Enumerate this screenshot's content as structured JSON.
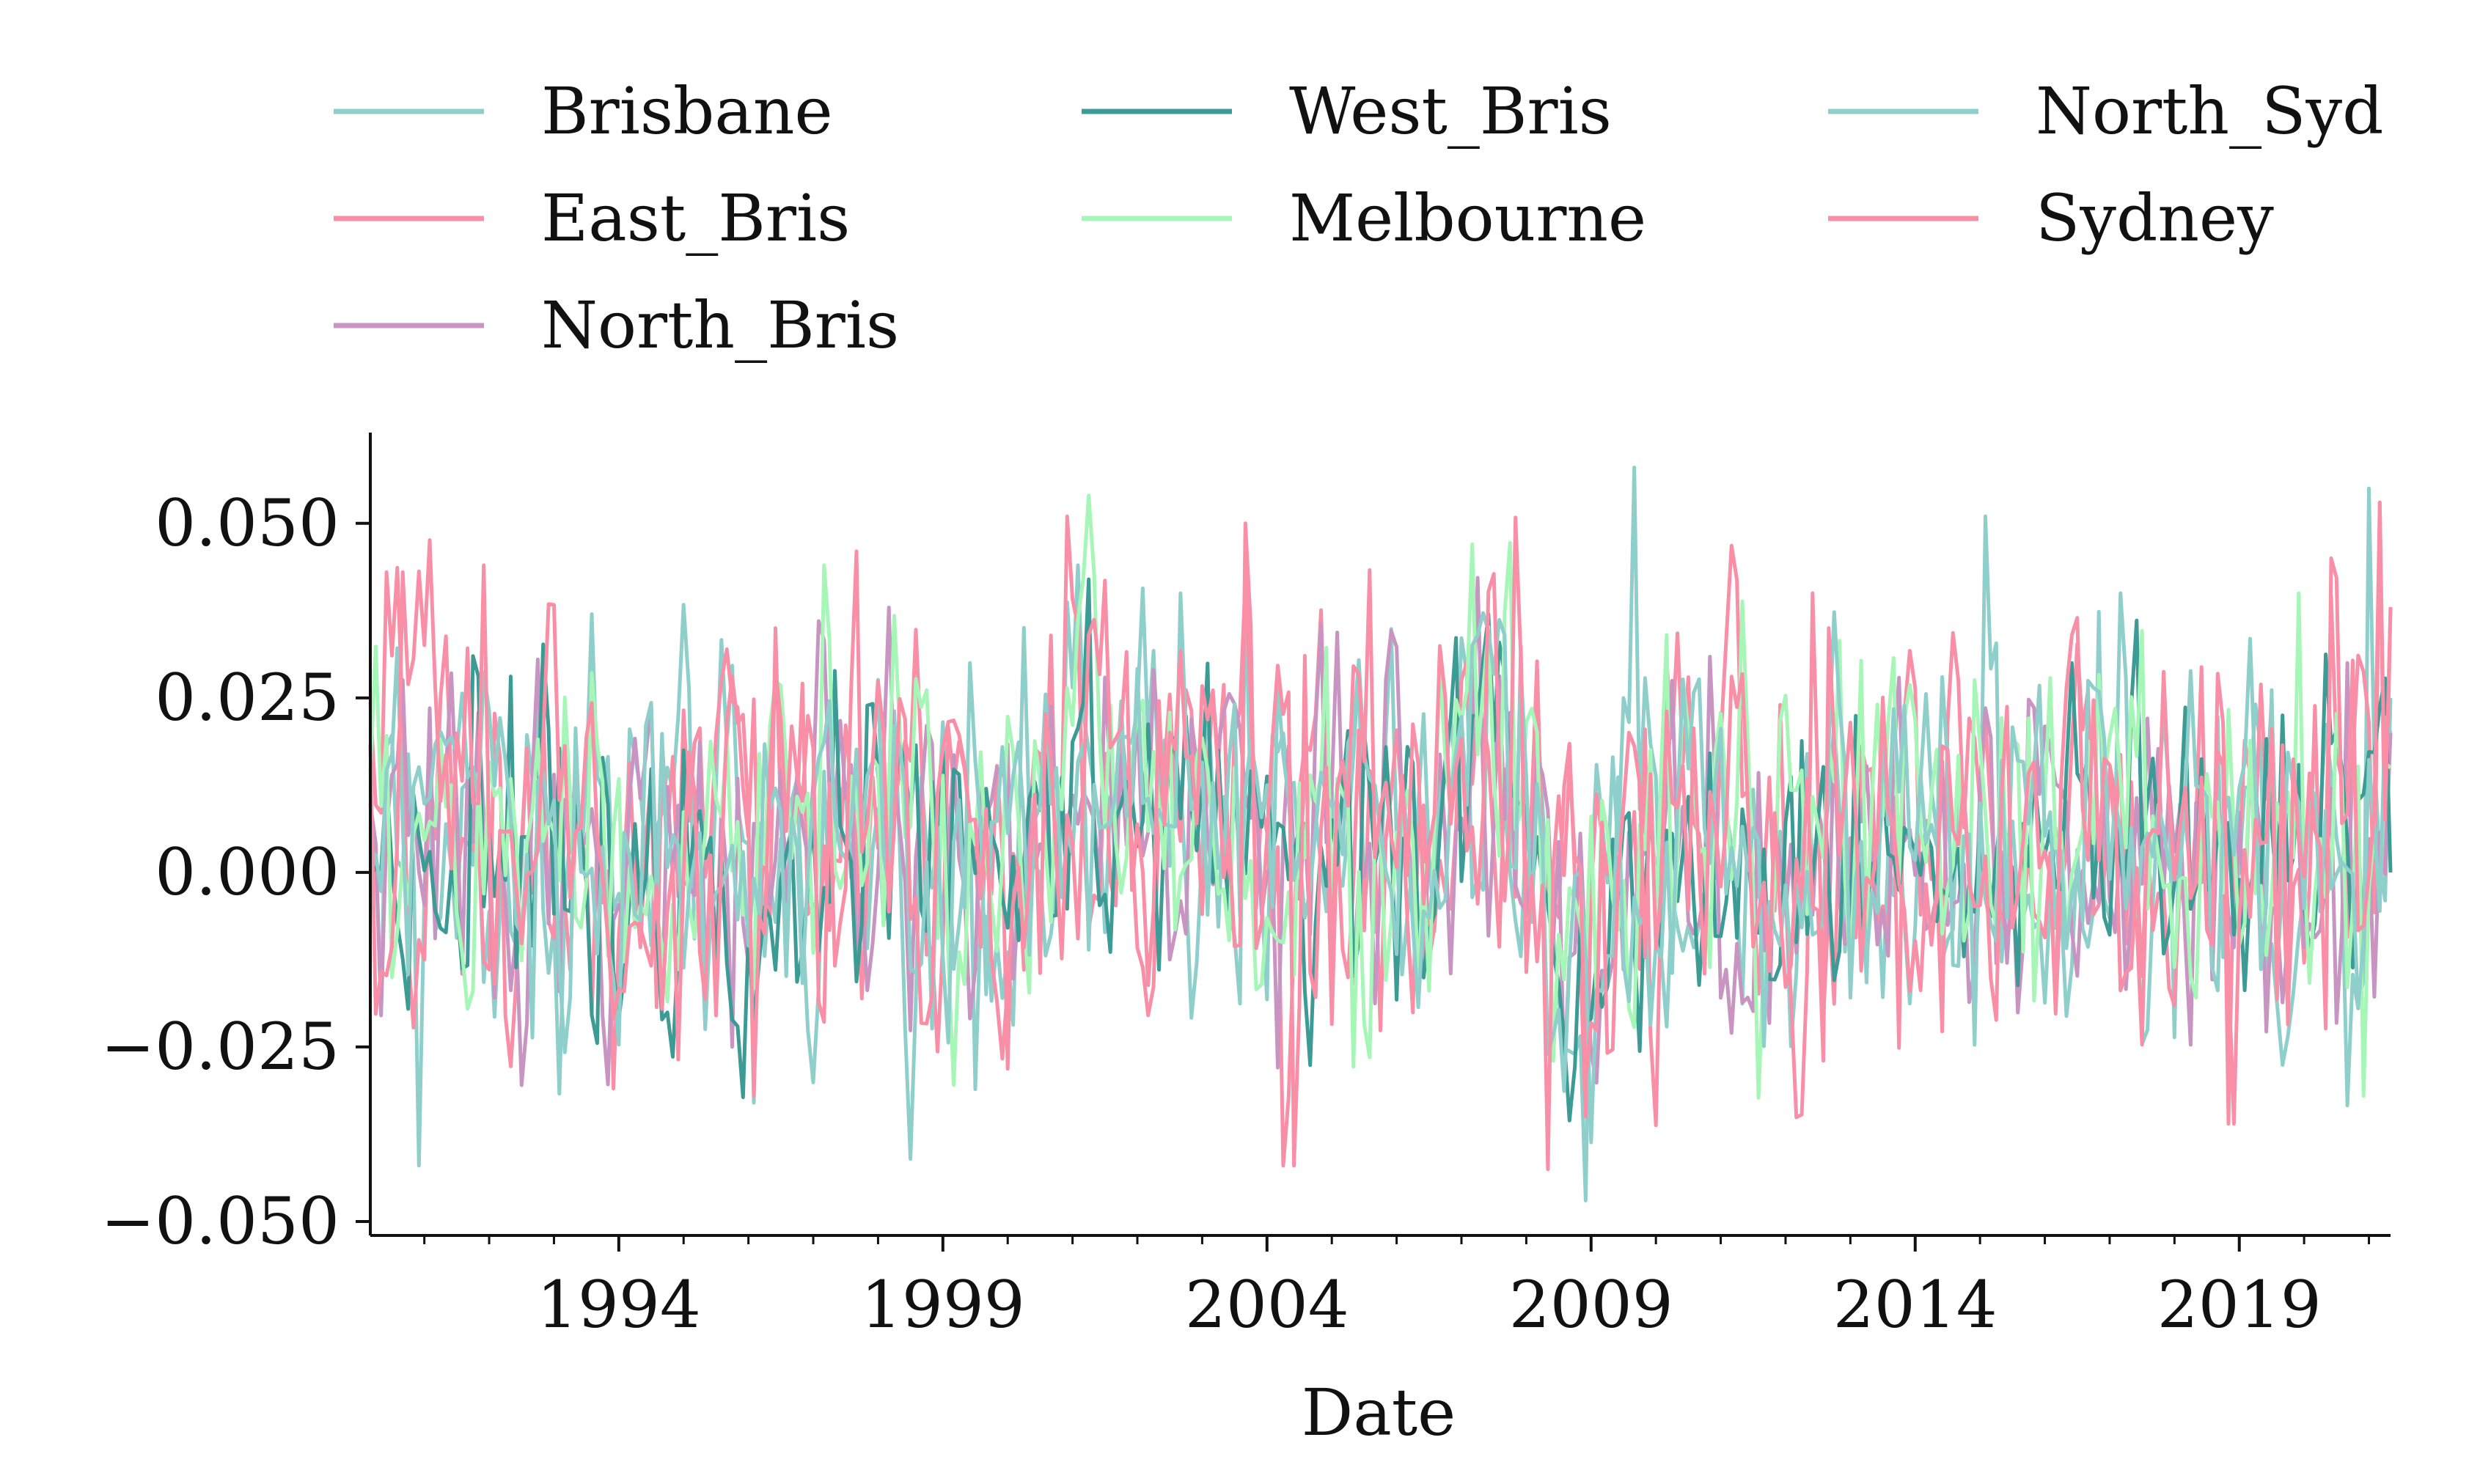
{
  "chart_data": {
    "type": "line",
    "title": "",
    "xlabel": "Date",
    "ylabel": "",
    "xlim": [
      "1990-03",
      "2021-05"
    ],
    "ylim": [
      -0.052,
      0.063
    ],
    "grid": false,
    "legend_position": "top, above plot, 3 columns",
    "x_ticks": [
      "1994",
      "1999",
      "2004",
      "2009",
      "2014",
      "2019"
    ],
    "y_ticks": [
      "0.050",
      "0.025",
      "0.000",
      "−0.025",
      "−0.050"
    ],
    "y_tick_values": [
      0.05,
      0.025,
      0.0,
      -0.025,
      -0.05
    ],
    "series": [
      {
        "name": "Brisbane",
        "color": "#8fcfcb",
        "key_points": [
          [
            "1990-06",
            0.018
          ],
          [
            "1990-12",
            -0.042
          ],
          [
            "1993-08",
            0.037
          ],
          [
            "1996-02",
            -0.033
          ],
          [
            "2001-02",
            0.044
          ],
          [
            "2003-09",
            0.042
          ],
          [
            "2007-06",
            0.035
          ],
          [
            "2008-12",
            -0.047
          ],
          [
            "2009-09",
            0.058
          ],
          [
            "2015-02",
            0.051
          ],
          [
            "2017-03",
            0.04
          ],
          [
            "2021-01",
            0.055
          ],
          [
            "2021-05",
            0.025
          ]
        ],
        "mean": 0.002,
        "amplitude": 0.013
      },
      {
        "name": "East_Bris",
        "color": "#f98fa7",
        "key_points": [
          [
            "1990-06",
            0.043
          ],
          [
            "1996-06",
            0.035
          ],
          [
            "2000-12",
            0.051
          ],
          [
            "2004-04",
            -0.042
          ],
          [
            "2008-12",
            -0.035
          ],
          [
            "2012-06",
            0.04
          ],
          [
            "2018-11",
            -0.036
          ],
          [
            "2021-03",
            0.053
          ],
          [
            "2021-05",
            0.038
          ]
        ],
        "mean": 0.004,
        "amplitude": 0.014
      },
      {
        "name": "North_Bris",
        "color": "#c894c2",
        "key_points": [
          [
            "1995-10",
            -0.025
          ],
          [
            "2002-04",
            0.029
          ],
          [
            "2011-03",
            -0.023
          ],
          [
            "2020-09",
            0.03
          ],
          [
            "2021-05",
            0.02
          ]
        ],
        "mean": 0.003,
        "amplitude": 0.012
      },
      {
        "name": "West_Bris",
        "color": "#3d9b95",
        "key_points": [
          [
            "1991-10",
            0.031
          ],
          [
            "2001-04",
            0.042
          ],
          [
            "2007-06",
            0.037
          ],
          [
            "2008-12",
            -0.022
          ],
          [
            "2016-06",
            0.03
          ],
          [
            "2021-05",
            0.0
          ]
        ],
        "mean": 0.003,
        "amplitude": 0.011
      },
      {
        "name": "Melbourne",
        "color": "#a6f6b8",
        "key_points": [
          [
            "1997-03",
            0.044
          ],
          [
            "2001-04",
            0.054
          ],
          [
            "2007-03",
            0.047
          ],
          [
            "2008-06",
            -0.027
          ],
          [
            "2010-03",
            0.034
          ],
          [
            "2019-12",
            0.04
          ],
          [
            "2020-12",
            -0.032
          ],
          [
            "2021-05",
            0.015
          ]
        ],
        "mean": 0.004,
        "amplitude": 0.013
      },
      {
        "name": "North_Syd",
        "color": "#8fcfcb",
        "key_points": [
          [
            "1999-06",
            0.03
          ],
          [
            "2002-09",
            0.04
          ],
          [
            "2007-09",
            0.034
          ],
          [
            "2014-06",
            0.028
          ],
          [
            "2021-05",
            0.02
          ]
        ],
        "mean": 0.004,
        "amplitude": 0.012
      },
      {
        "name": "Sydney",
        "color": "#f98fa7",
        "key_points": [
          [
            "1990-09",
            0.043
          ],
          [
            "1991-12",
            0.044
          ],
          [
            "1997-09",
            0.046
          ],
          [
            "2003-09",
            0.05
          ],
          [
            "2004-06",
            -0.042
          ],
          [
            "2008-12",
            -0.03
          ],
          [
            "2012-09",
            0.035
          ],
          [
            "2018-12",
            -0.036
          ],
          [
            "2020-06",
            0.045
          ],
          [
            "2021-03",
            0.053
          ],
          [
            "2021-05",
            0.038
          ]
        ],
        "mean": 0.004,
        "amplitude": 0.014
      }
    ]
  }
}
